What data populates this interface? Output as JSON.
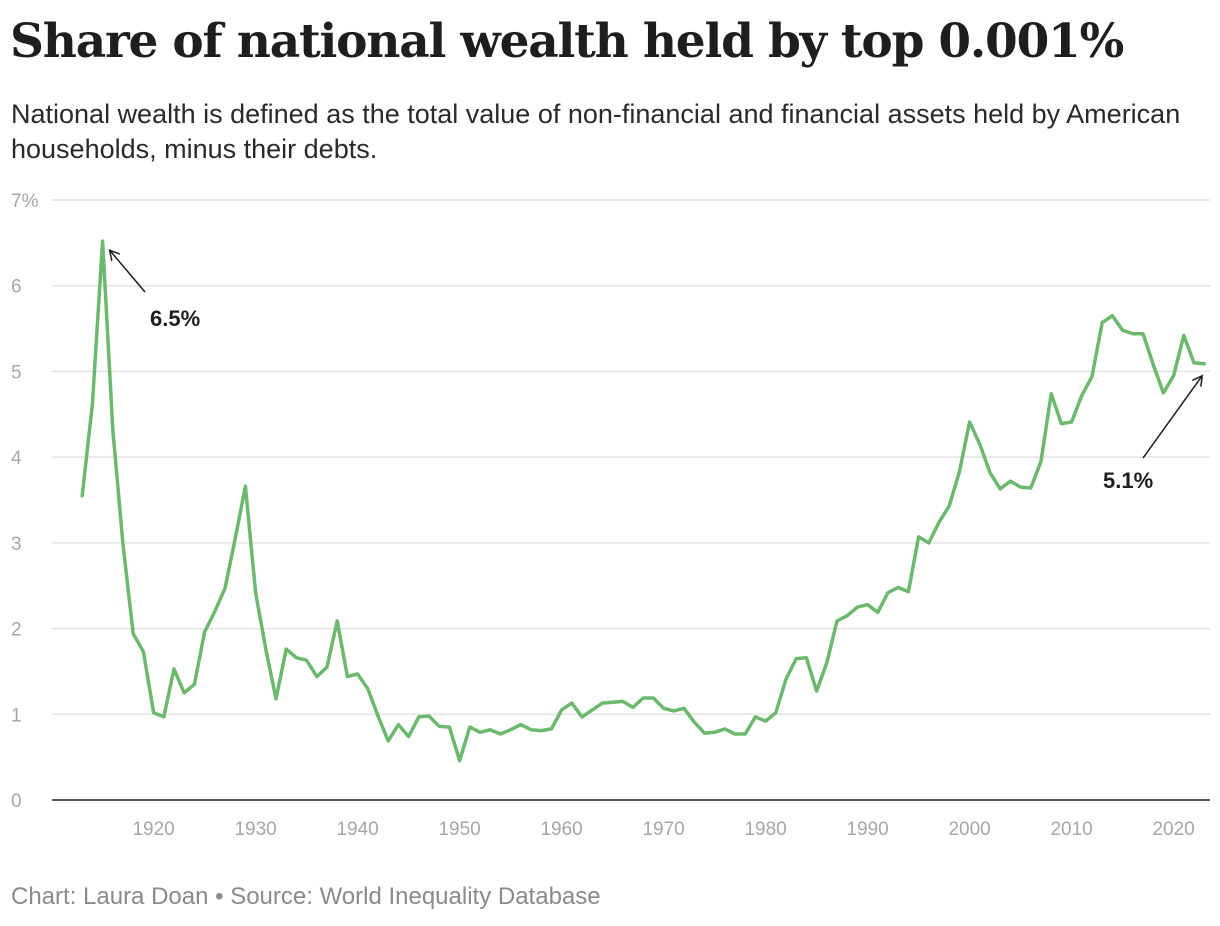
{
  "title": "Share of national wealth held by top 0.001%",
  "subtitle": "National wealth is defined as the total value of non-financial and financial assets held by American households, minus their debts.",
  "footer": {
    "credit": "Chart: Laura Doan",
    "separator": "•",
    "source": "Source: World Inequality Database",
    "text": "Chart: Laura Doan • Source: World Inequality Database"
  },
  "chart_data": {
    "type": "line",
    "title": "Share of national wealth held by top 0.001%",
    "xlabel": "",
    "ylabel": "",
    "xlim": [
      1911,
      2025
    ],
    "ylim": [
      0,
      7
    ],
    "x_ticks": [
      1920,
      1930,
      1940,
      1950,
      1960,
      1970,
      1980,
      1990,
      2000,
      2010,
      2020
    ],
    "x_tick_labels": [
      "1920",
      "1930",
      "1940",
      "1950",
      "1960",
      "1970",
      "1980",
      "1990",
      "2000",
      "2010",
      "2020"
    ],
    "y_ticks": [
      0,
      1,
      2,
      3,
      4,
      5,
      6,
      7
    ],
    "y_tick_labels": [
      "0",
      "1",
      "2",
      "3",
      "4",
      "5",
      "6",
      "7%"
    ],
    "grid": "horizontal",
    "line_color": "#6ab96c",
    "series": [
      {
        "x": [
          1913,
          1914,
          1915,
          1916,
          1917,
          1918,
          1919,
          1920,
          1921,
          1922,
          1923,
          1924,
          1925,
          1926,
          1927,
          1928,
          1929,
          1930,
          1931,
          1932,
          1933,
          1934,
          1935,
          1936,
          1937,
          1938,
          1939,
          1940,
          1941,
          1942,
          1943,
          1944,
          1945,
          1946,
          1947,
          1948,
          1949,
          1950,
          1951,
          1952,
          1953,
          1954,
          1955,
          1956,
          1957,
          1958,
          1959,
          1960,
          1961,
          1962,
          1963,
          1964,
          1965,
          1966,
          1967,
          1968,
          1969,
          1970,
          1971,
          1972,
          1973,
          1974,
          1975,
          1976,
          1977,
          1978,
          1979,
          1980,
          1981,
          1982,
          1983,
          1984,
          1985,
          1986,
          1987,
          1988,
          1989,
          1990,
          1991,
          1992,
          1993,
          1994,
          1995,
          1996,
          1997,
          1998,
          1999,
          2000,
          2001,
          2002,
          2003,
          2004,
          2005,
          2006,
          2007,
          2008,
          2009,
          2010,
          2011,
          2012,
          2013,
          2014,
          2015,
          2016,
          2017,
          2018,
          2019,
          2020,
          2021,
          2022,
          2023
        ],
        "values": [
          3.55,
          4.62,
          6.52,
          4.32,
          2.98,
          1.94,
          1.73,
          1.02,
          0.97,
          1.53,
          1.25,
          1.35,
          1.96,
          2.2,
          2.47,
          3.05,
          3.66,
          2.42,
          1.76,
          1.18,
          1.76,
          1.66,
          1.63,
          1.44,
          1.55,
          2.09,
          1.44,
          1.47,
          1.3,
          0.98,
          0.69,
          0.88,
          0.74,
          0.97,
          0.98,
          0.86,
          0.85,
          0.46,
          0.85,
          0.79,
          0.82,
          0.77,
          0.82,
          0.88,
          0.82,
          0.81,
          0.83,
          1.05,
          1.13,
          0.97,
          1.05,
          1.13,
          1.14,
          1.15,
          1.08,
          1.19,
          1.19,
          1.07,
          1.04,
          1.07,
          0.91,
          0.78,
          0.79,
          0.83,
          0.77,
          0.77,
          0.97,
          0.92,
          1.02,
          1.41,
          1.65,
          1.66,
          1.27,
          1.6,
          2.09,
          2.15,
          2.25,
          2.28,
          2.19,
          2.42,
          2.48,
          2.43,
          3.07,
          3.0,
          3.24,
          3.43,
          3.83,
          4.41,
          4.15,
          3.82,
          3.63,
          3.72,
          3.65,
          3.64,
          3.95,
          4.74,
          4.39,
          4.41,
          4.72,
          4.94,
          5.57,
          5.65,
          5.48,
          5.44,
          5.44,
          5.08,
          4.75,
          4.95,
          5.42,
          5.1,
          5.09
        ]
      }
    ],
    "annotations": [
      {
        "label": "6.5%",
        "x": 1915,
        "y": 6.52
      },
      {
        "label": "5.1%",
        "x": 2023,
        "y": 5.09
      }
    ]
  }
}
